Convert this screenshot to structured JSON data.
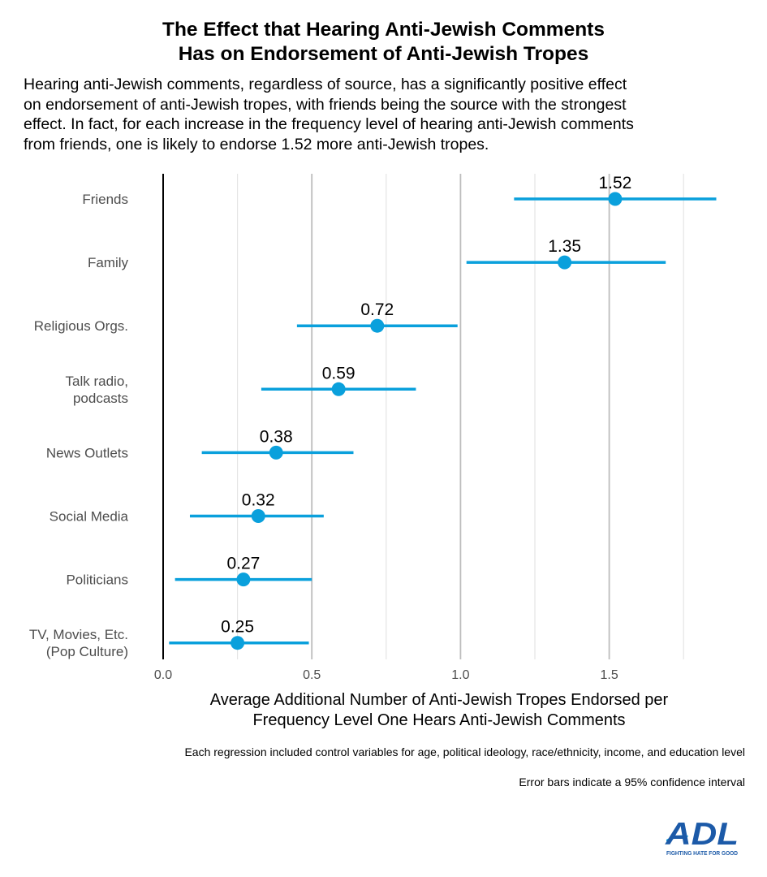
{
  "title": {
    "line1": "The Effect that Hearing Anti-Jewish Comments",
    "line2": "Has on Endorsement of Anti-Jewish Tropes"
  },
  "subtitle": {
    "line1": "Hearing anti-Jewish comments, regardless of source, has a significantly positive effect",
    "line2": "on endorsement of anti-Jewish tropes, with friends being the source with the strongest",
    "line3": "effect. In fact, for each increase in the frequency level of hearing anti-Jewish comments",
    "line4": "from friends, one is likely to endorse 1.52 more anti-Jewish tropes."
  },
  "chart_data": {
    "type": "scatter",
    "subtype": "dot-and-whisker",
    "categories": [
      [
        "Friends"
      ],
      [
        "Family"
      ],
      [
        "Religious Orgs."
      ],
      [
        "Talk radio,",
        "podcasts"
      ],
      [
        "News Outlets"
      ],
      [
        "Social Media"
      ],
      [
        "Politicians"
      ],
      [
        "TV, Movies, Etc.",
        "(Pop Culture)"
      ]
    ],
    "values": [
      1.52,
      1.35,
      0.72,
      0.59,
      0.38,
      0.32,
      0.27,
      0.25
    ],
    "value_labels": [
      "1.52",
      "1.35",
      "0.72",
      "0.59",
      "0.38",
      "0.32",
      "0.27",
      "0.25"
    ],
    "ci_low": [
      1.18,
      1.02,
      0.45,
      0.33,
      0.13,
      0.09,
      0.04,
      0.02
    ],
    "ci_high": [
      1.86,
      1.69,
      0.99,
      0.85,
      0.64,
      0.54,
      0.5,
      0.49
    ],
    "xlim": [
      0.0,
      1.88
    ],
    "xticks": [
      0.0,
      0.5,
      1.0,
      1.5
    ],
    "xtick_labels": [
      "0.0",
      "0.5",
      "1.0",
      "1.5"
    ],
    "minor_gridlines": [
      0.25,
      0.75,
      1.25,
      1.75
    ],
    "xlabel": {
      "line1": "Average Additional Number of Anti-Jewish Tropes Endorsed per",
      "line2": "Frequency Level One Hears Anti-Jewish Comments"
    },
    "ylabel": "",
    "grid": true,
    "color": "#0aa0dc"
  },
  "notes": {
    "controls": "Each regression included control variables for age, political ideology, race/ethnicity, income, and education level",
    "error_bars": "Error bars indicate a 95% confidence interval"
  },
  "logo": {
    "text": "ADL",
    "tagline": "FIGHTING HATE FOR GOOD",
    "color": "#1c5aa8",
    "accent": "#0aa0dc"
  }
}
